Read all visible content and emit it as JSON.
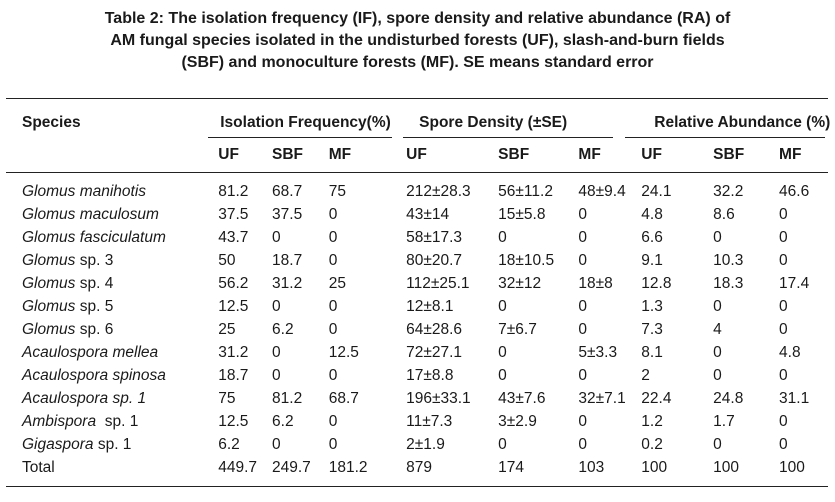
{
  "caption": {
    "line1": "Table 2: The isolation frequency (IF), spore density and relative abundance (RA) of",
    "line2": "AM fungal species isolated in the undisturbed forests (UF), slash-and-burn fields",
    "line3": "(SBF) and monoculture forests (MF). SE means standard error"
  },
  "headers": {
    "species": "Species",
    "group1": "Isolation Frequency(%)",
    "group2": "Spore Density (±SE)",
    "group3": "Relative Abundance (%)",
    "sub": [
      "UF",
      "SBF",
      "MF",
      "UF",
      "SBF",
      "MF",
      "UF",
      "SBF",
      "MF"
    ]
  },
  "rows": [
    {
      "genus": "Glomus manihotis",
      "rest": "",
      "v": [
        "81.2",
        "68.7",
        "75",
        "212±28.3",
        "56±11.2",
        "48±9.4",
        "24.1",
        "32.2",
        "46.6"
      ]
    },
    {
      "genus": "Glomus maculosum",
      "rest": "",
      "v": [
        "37.5",
        "37.5",
        "0",
        "43±14",
        "15±5.8",
        "0",
        "4.8",
        "8.6",
        "0"
      ]
    },
    {
      "genus": "Glomus fasciculatum",
      "rest": "",
      "v": [
        "43.7",
        "0",
        "0",
        "58±17.3",
        "0",
        "0",
        "6.6",
        "0",
        "0"
      ]
    },
    {
      "genus": "Glomus",
      "rest": " sp. 3",
      "v": [
        "50",
        "18.7",
        "0",
        "80±20.7",
        "18±10.5",
        "0",
        "9.1",
        "10.3",
        "0"
      ]
    },
    {
      "genus": "Glomus",
      "rest": " sp. 4",
      "v": [
        "56.2",
        "31.2",
        "25",
        "112±25.1",
        "32±12",
        "18±8",
        "12.8",
        "18.3",
        "17.4"
      ]
    },
    {
      "genus": "Glomus",
      "rest": " sp. 5",
      "v": [
        "12.5",
        "0",
        "0",
        "12±8.1",
        "0",
        "0",
        "1.3",
        "0",
        "0"
      ]
    },
    {
      "genus": "Glomus",
      "rest": " sp. 6",
      "v": [
        "25",
        "6.2",
        "0",
        "64±28.6",
        "7±6.7",
        "0",
        "7.3",
        "4",
        "0"
      ]
    },
    {
      "genus": "Acaulospora mellea",
      "rest": "",
      "v": [
        "31.2",
        "0",
        "12.5",
        "72±27.1",
        "0",
        "5±3.3",
        "8.1",
        "0",
        "4.8"
      ]
    },
    {
      "genus": "Acaulospora spinosa",
      "rest": "",
      "v": [
        "18.7",
        "0",
        "0",
        "17±8.8",
        "0",
        "0",
        "2",
        "0",
        "0"
      ]
    },
    {
      "genus": "Acaulospora sp. 1",
      "rest": "",
      "v": [
        "75",
        "81.2",
        "68.7",
        "196±33.1",
        "43±7.6",
        "32±7.1",
        "22.4",
        "24.8",
        "31.1"
      ]
    },
    {
      "genus": "Ambispora",
      "rest": "  sp. 1",
      "v": [
        "12.5",
        "6.2",
        "0",
        "11±7.3",
        "3±2.9",
        "0",
        "1.2",
        "1.7",
        "0"
      ]
    },
    {
      "genus": "Gigaspora",
      "rest": " sp. 1",
      "v": [
        "6.2",
        "0",
        "0",
        "2±1.9",
        "0",
        "0",
        "0.2",
        "0",
        "0"
      ]
    }
  ],
  "total": {
    "label": "Total",
    "v": [
      "449.7",
      "249.7",
      "181.2",
      "879",
      "174",
      "103",
      "100",
      "100",
      "100"
    ]
  }
}
